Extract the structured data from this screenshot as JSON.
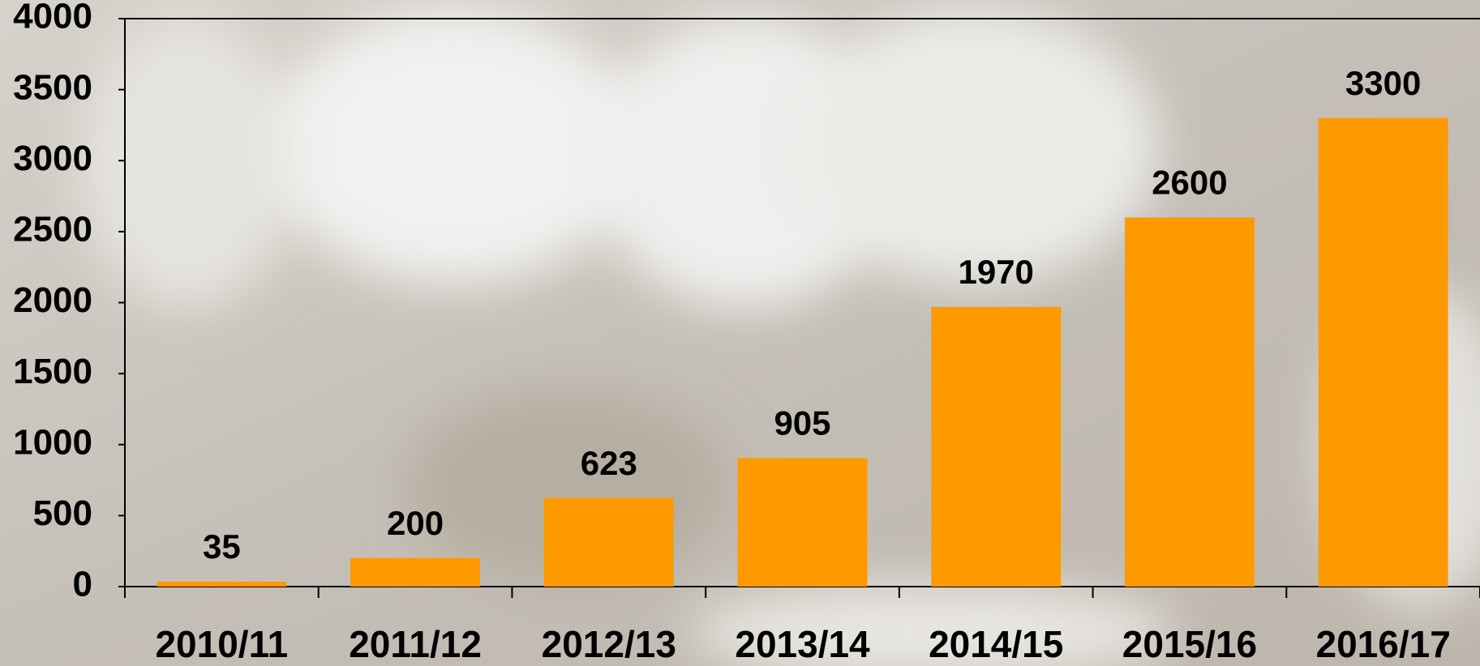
{
  "chart_data": {
    "type": "bar",
    "categories": [
      "2010/11",
      "2011/12",
      "2012/13",
      "2013/14",
      "2014/15",
      "2015/16",
      "2016/17"
    ],
    "values": [
      35,
      200,
      623,
      905,
      1970,
      2600,
      3300
    ],
    "color": "#ff9900",
    "ylim": [
      0,
      4000
    ],
    "yticks": [
      0,
      500,
      1000,
      1500,
      2000,
      2500,
      3000,
      3500,
      4000
    ]
  }
}
